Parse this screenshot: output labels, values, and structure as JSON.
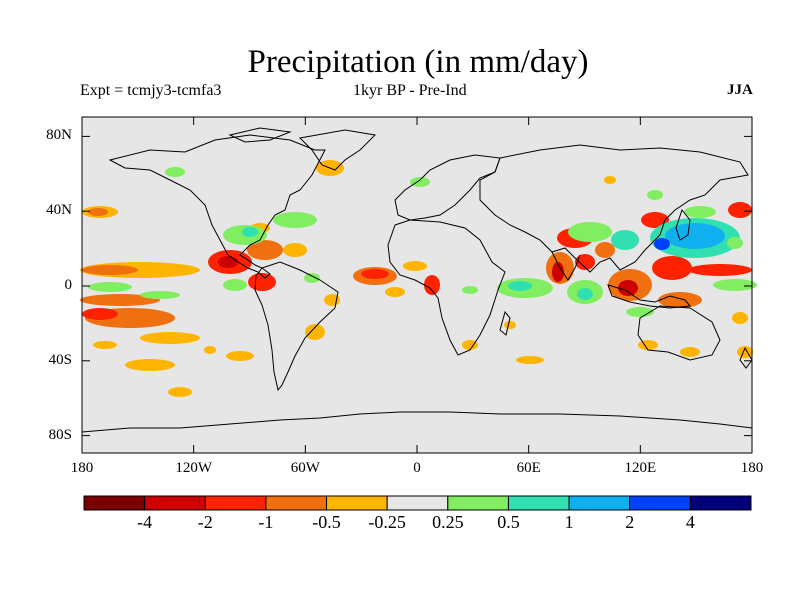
{
  "title": "Precipitation (in mm/day)",
  "subtitle_left": "Expt = tcmjy3-tcmfa3",
  "subtitle_center": "1kyr BP - Pre-Ind",
  "subtitle_right": "JJA",
  "lat_ticks": [
    {
      "label": "80N",
      "value": 80
    },
    {
      "label": "40N",
      "value": 40
    },
    {
      "label": "0",
      "value": 0
    },
    {
      "label": "40S",
      "value": -40
    },
    {
      "label": "80S",
      "value": -80
    }
  ],
  "lon_ticks": [
    {
      "label": "180",
      "value": -180
    },
    {
      "label": "120W",
      "value": -120
    },
    {
      "label": "60W",
      "value": -60
    },
    {
      "label": "0",
      "value": 0
    },
    {
      "label": "60E",
      "value": 60
    },
    {
      "label": "120E",
      "value": 120
    },
    {
      "label": "180",
      "value": 180
    }
  ],
  "colorbar": {
    "colors": [
      "#7b0000",
      "#cc0000",
      "#ff2200",
      "#f07010",
      "#ffb400",
      "#e6e6e6",
      "#80ee60",
      "#30e0b0",
      "#10b0f0",
      "#0040ff",
      "#00007a"
    ],
    "labels": [
      "-4",
      "-2",
      "-1",
      "-0.5",
      "-0.25",
      "0.25",
      "0.5",
      "1",
      "2",
      "4"
    ]
  },
  "colors": {
    "land_ocean_background": "#e6e6e6",
    "coastline": "#000000"
  }
}
